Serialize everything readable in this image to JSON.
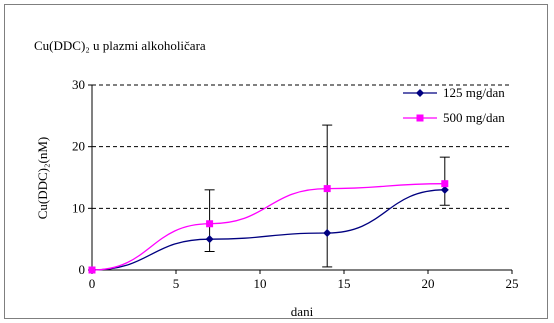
{
  "chart_data": {
    "type": "line",
    "title": "Cu(DDC)₂ u plazmi alkoholičara",
    "xlabel": "dani",
    "ylabel": "Cu(DDC)₂(nM)",
    "xlim": [
      0,
      25
    ],
    "ylim": [
      0,
      30
    ],
    "x_ticks": [
      0,
      5,
      10,
      15,
      20,
      25
    ],
    "y_ticks": [
      0,
      10,
      20,
      30
    ],
    "grid": "horizontal dashed",
    "legend_position": "top-right",
    "series": [
      {
        "name": "125 mg/dan",
        "color": "#000080",
        "marker": "diamond",
        "x": [
          0,
          7,
          14,
          21
        ],
        "y": [
          0,
          5,
          6,
          13
        ],
        "error_high": [
          0,
          8,
          17.5,
          5.3
        ],
        "error_low": [
          0,
          2,
          5.5,
          2.5
        ]
      },
      {
        "name": "500 mg/dan",
        "color": "#ff00ff",
        "marker": "square",
        "x": [
          0,
          7,
          14,
          21
        ],
        "y": [
          0,
          7.5,
          13.2,
          14
        ],
        "error_high": [
          0,
          0,
          0,
          0
        ],
        "error_low": [
          0,
          0,
          0,
          0
        ]
      }
    ]
  }
}
